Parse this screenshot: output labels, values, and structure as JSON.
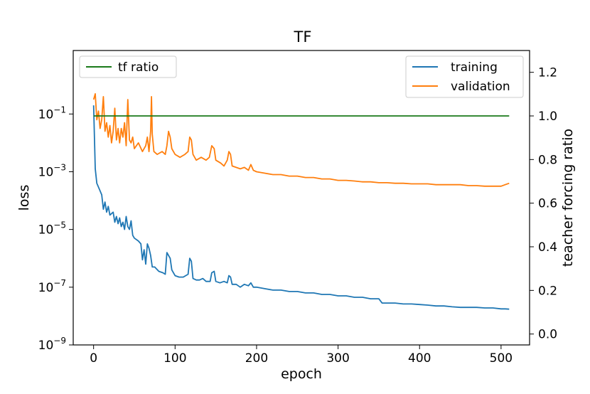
{
  "chart_data": {
    "type": "line",
    "title": "TF",
    "xlabel": "epoch",
    "ylabel": "loss",
    "y2label": "teacher forcing ratio",
    "xlim": [
      -25,
      535
    ],
    "ylim_log10": [
      -9,
      1.2
    ],
    "y2lim": [
      -0.05,
      1.3
    ],
    "yscale": "log",
    "grid": false,
    "xticks": [
      0,
      100,
      200,
      300,
      400,
      500
    ],
    "yticks_exp": [
      -1,
      -3,
      -5,
      -7,
      -9
    ],
    "y2ticks": [
      0.0,
      0.2,
      0.4,
      0.6,
      0.8,
      1.0,
      1.2
    ],
    "legend_left": {
      "placement": "upper-left",
      "entries": [
        "tf ratio"
      ]
    },
    "legend_right": {
      "placement": "upper-right",
      "entries": [
        "training",
        "validation"
      ]
    },
    "colors": {
      "training": "#1f77b4",
      "validation": "#ff7f0e",
      "tf_ratio": "#1a7a1a"
    },
    "series": [
      {
        "name": "training",
        "axis": "left",
        "log10_values": [
          [
            0,
            -0.7
          ],
          [
            2,
            -2.9
          ],
          [
            4,
            -3.4
          ],
          [
            7,
            -3.6
          ],
          [
            10,
            -3.8
          ],
          [
            12,
            -4.3
          ],
          [
            14,
            -4.05
          ],
          [
            16,
            -4.4
          ],
          [
            18,
            -4.2
          ],
          [
            20,
            -4.5
          ],
          [
            22,
            -4.45
          ],
          [
            24,
            -4.4
          ],
          [
            26,
            -4.75
          ],
          [
            28,
            -4.55
          ],
          [
            30,
            -4.8
          ],
          [
            32,
            -4.6
          ],
          [
            34,
            -4.9
          ],
          [
            36,
            -4.75
          ],
          [
            38,
            -5.0
          ],
          [
            40,
            -4.55
          ],
          [
            42,
            -4.9
          ],
          [
            44,
            -5.0
          ],
          [
            46,
            -4.7
          ],
          [
            48,
            -5.2
          ],
          [
            50,
            -5.3
          ],
          [
            55,
            -5.4
          ],
          [
            58,
            -5.5
          ],
          [
            60,
            -6.05
          ],
          [
            62,
            -5.7
          ],
          [
            64,
            -6.2
          ],
          [
            66,
            -5.5
          ],
          [
            68,
            -5.65
          ],
          [
            70,
            -5.9
          ],
          [
            72,
            -6.3
          ],
          [
            75,
            -6.3
          ],
          [
            80,
            -6.45
          ],
          [
            85,
            -6.5
          ],
          [
            88,
            -6.55
          ],
          [
            90,
            -5.8
          ],
          [
            92,
            -5.9
          ],
          [
            94,
            -6.0
          ],
          [
            96,
            -6.4
          ],
          [
            100,
            -6.6
          ],
          [
            105,
            -6.65
          ],
          [
            110,
            -6.65
          ],
          [
            116,
            -6.55
          ],
          [
            118,
            -6.0
          ],
          [
            120,
            -6.1
          ],
          [
            122,
            -6.7
          ],
          [
            126,
            -6.75
          ],
          [
            130,
            -6.75
          ],
          [
            134,
            -6.7
          ],
          [
            138,
            -6.8
          ],
          [
            143,
            -6.8
          ],
          [
            145,
            -6.5
          ],
          [
            148,
            -6.45
          ],
          [
            150,
            -6.8
          ],
          [
            155,
            -6.85
          ],
          [
            160,
            -6.8
          ],
          [
            164,
            -6.85
          ],
          [
            166,
            -6.6
          ],
          [
            168,
            -6.65
          ],
          [
            170,
            -6.9
          ],
          [
            175,
            -6.9
          ],
          [
            180,
            -7.0
          ],
          [
            185,
            -6.9
          ],
          [
            190,
            -6.95
          ],
          [
            193,
            -6.85
          ],
          [
            196,
            -7.0
          ],
          [
            200,
            -7.0
          ],
          [
            210,
            -7.05
          ],
          [
            220,
            -7.1
          ],
          [
            230,
            -7.1
          ],
          [
            240,
            -7.15
          ],
          [
            250,
            -7.15
          ],
          [
            260,
            -7.2
          ],
          [
            270,
            -7.2
          ],
          [
            280,
            -7.25
          ],
          [
            290,
            -7.25
          ],
          [
            300,
            -7.3
          ],
          [
            310,
            -7.3
          ],
          [
            320,
            -7.35
          ],
          [
            330,
            -7.35
          ],
          [
            340,
            -7.4
          ],
          [
            350,
            -7.4
          ],
          [
            354,
            -7.55
          ],
          [
            360,
            -7.55
          ],
          [
            370,
            -7.55
          ],
          [
            380,
            -7.58
          ],
          [
            390,
            -7.58
          ],
          [
            400,
            -7.6
          ],
          [
            410,
            -7.62
          ],
          [
            420,
            -7.65
          ],
          [
            430,
            -7.65
          ],
          [
            440,
            -7.68
          ],
          [
            450,
            -7.7
          ],
          [
            460,
            -7.7
          ],
          [
            470,
            -7.7
          ],
          [
            480,
            -7.72
          ],
          [
            490,
            -7.72
          ],
          [
            500,
            -7.75
          ],
          [
            505,
            -7.75
          ],
          [
            510,
            -7.76
          ]
        ]
      },
      {
        "name": "validation",
        "axis": "left",
        "log10_values": [
          [
            0,
            -0.5
          ],
          [
            2,
            -0.3
          ],
          [
            4,
            -1.2
          ],
          [
            6,
            -0.9
          ],
          [
            8,
            -1.5
          ],
          [
            10,
            -1.2
          ],
          [
            12,
            -0.4
          ],
          [
            14,
            -1.6
          ],
          [
            16,
            -1.3
          ],
          [
            18,
            -1.8
          ],
          [
            20,
            -1.4
          ],
          [
            22,
            -2.0
          ],
          [
            24,
            -1.6
          ],
          [
            26,
            -0.8
          ],
          [
            28,
            -1.9
          ],
          [
            30,
            -1.5
          ],
          [
            32,
            -2.0
          ],
          [
            34,
            -1.5
          ],
          [
            36,
            -1.8
          ],
          [
            38,
            -1.3
          ],
          [
            40,
            -2.1
          ],
          [
            42,
            -0.5
          ],
          [
            44,
            -1.9
          ],
          [
            46,
            -2.0
          ],
          [
            48,
            -1.8
          ],
          [
            50,
            -2.2
          ],
          [
            55,
            -2.0
          ],
          [
            60,
            -2.3
          ],
          [
            64,
            -2.1
          ],
          [
            66,
            -1.8
          ],
          [
            68,
            -2.3
          ],
          [
            70,
            -1.6
          ],
          [
            71,
            -0.4
          ],
          [
            72,
            -1.7
          ],
          [
            74,
            -2.3
          ],
          [
            78,
            -2.4
          ],
          [
            84,
            -2.3
          ],
          [
            88,
            -2.4
          ],
          [
            90,
            -2.1
          ],
          [
            92,
            -1.6
          ],
          [
            94,
            -1.8
          ],
          [
            96,
            -2.2
          ],
          [
            100,
            -2.4
          ],
          [
            106,
            -2.5
          ],
          [
            112,
            -2.4
          ],
          [
            116,
            -2.3
          ],
          [
            118,
            -1.8
          ],
          [
            120,
            -1.9
          ],
          [
            122,
            -2.4
          ],
          [
            126,
            -2.6
          ],
          [
            132,
            -2.5
          ],
          [
            138,
            -2.6
          ],
          [
            142,
            -2.5
          ],
          [
            145,
            -2.1
          ],
          [
            148,
            -2.2
          ],
          [
            150,
            -2.6
          ],
          [
            156,
            -2.7
          ],
          [
            160,
            -2.8
          ],
          [
            164,
            -2.6
          ],
          [
            166,
            -2.3
          ],
          [
            168,
            -2.4
          ],
          [
            170,
            -2.8
          ],
          [
            175,
            -2.85
          ],
          [
            180,
            -2.9
          ],
          [
            185,
            -2.85
          ],
          [
            190,
            -2.95
          ],
          [
            193,
            -2.75
          ],
          [
            196,
            -2.95
          ],
          [
            200,
            -3.0
          ],
          [
            210,
            -3.05
          ],
          [
            220,
            -3.1
          ],
          [
            230,
            -3.1
          ],
          [
            240,
            -3.15
          ],
          [
            250,
            -3.15
          ],
          [
            260,
            -3.2
          ],
          [
            270,
            -3.2
          ],
          [
            280,
            -3.25
          ],
          [
            290,
            -3.25
          ],
          [
            300,
            -3.3
          ],
          [
            310,
            -3.3
          ],
          [
            320,
            -3.32
          ],
          [
            330,
            -3.35
          ],
          [
            340,
            -3.35
          ],
          [
            350,
            -3.38
          ],
          [
            360,
            -3.38
          ],
          [
            370,
            -3.4
          ],
          [
            380,
            -3.4
          ],
          [
            390,
            -3.42
          ],
          [
            400,
            -3.42
          ],
          [
            410,
            -3.42
          ],
          [
            420,
            -3.45
          ],
          [
            430,
            -3.45
          ],
          [
            440,
            -3.45
          ],
          [
            450,
            -3.45
          ],
          [
            460,
            -3.48
          ],
          [
            470,
            -3.48
          ],
          [
            480,
            -3.5
          ],
          [
            490,
            -3.5
          ],
          [
            500,
            -3.5
          ],
          [
            505,
            -3.45
          ],
          [
            510,
            -3.4
          ]
        ]
      },
      {
        "name": "tf ratio",
        "axis": "right",
        "values": [
          [
            0,
            1.0
          ],
          [
            510,
            1.0
          ]
        ]
      }
    ]
  }
}
